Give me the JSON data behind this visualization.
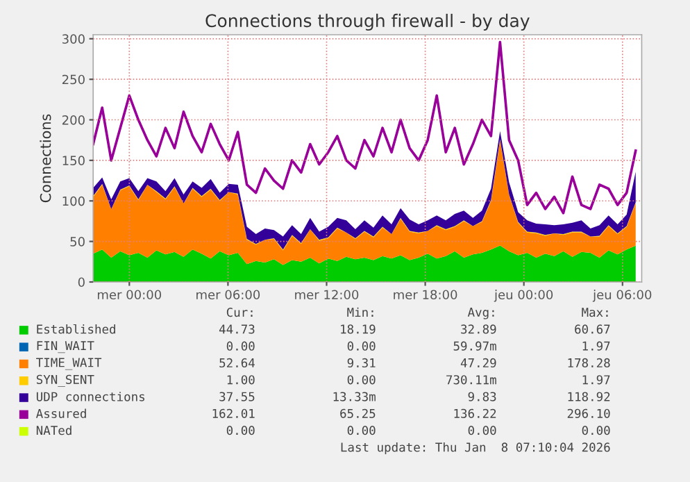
{
  "chart_data": {
    "type": "area",
    "title": "Connections through firewall - by day",
    "ylabel": "Connections",
    "stacked": true,
    "grid": true,
    "legend": "bottom",
    "x": [
      "2026-01-06T21:48",
      "2026-01-06T22:21",
      "2026-01-06T22:54",
      "2026-01-06T23:27",
      "2026-01-07T00:00",
      "2026-01-07T00:33",
      "2026-01-07T01:06",
      "2026-01-07T01:39",
      "2026-01-07T02:12",
      "2026-01-07T02:45",
      "2026-01-07T03:18",
      "2026-01-07T03:51",
      "2026-01-07T04:24",
      "2026-01-07T04:57",
      "2026-01-07T05:30",
      "2026-01-07T06:03",
      "2026-01-07T06:36",
      "2026-01-07T07:09",
      "2026-01-07T07:42",
      "2026-01-07T08:15",
      "2026-01-07T08:48",
      "2026-01-07T09:21",
      "2026-01-07T09:54",
      "2026-01-07T10:27",
      "2026-01-07T11:00",
      "2026-01-07T11:33",
      "2026-01-07T12:06",
      "2026-01-07T12:39",
      "2026-01-07T13:12",
      "2026-01-07T13:45",
      "2026-01-07T14:18",
      "2026-01-07T14:51",
      "2026-01-07T15:24",
      "2026-01-07T15:57",
      "2026-01-07T16:30",
      "2026-01-07T17:03",
      "2026-01-07T17:36",
      "2026-01-07T18:09",
      "2026-01-07T18:42",
      "2026-01-07T19:15",
      "2026-01-07T19:48",
      "2026-01-07T20:21",
      "2026-01-07T20:54",
      "2026-01-07T21:27",
      "2026-01-07T22:00",
      "2026-01-07T22:33",
      "2026-01-07T23:06",
      "2026-01-07T23:39",
      "2026-01-08T00:12",
      "2026-01-08T00:45",
      "2026-01-08T01:18",
      "2026-01-08T01:51",
      "2026-01-08T02:24",
      "2026-01-08T02:57",
      "2026-01-08T03:30",
      "2026-01-08T04:03",
      "2026-01-08T04:36",
      "2026-01-08T05:09",
      "2026-01-08T05:42",
      "2026-01-08T06:15",
      "2026-01-08T06:48"
    ],
    "xlim": [
      "2026-01-06T21:48",
      "2026-01-08T07:10"
    ],
    "xticks": [
      {
        "value": "2026-01-07T00:00",
        "label": "mer 00:00"
      },
      {
        "value": "2026-01-07T06:00",
        "label": "mer 06:00"
      },
      {
        "value": "2026-01-07T12:00",
        "label": "mer 12:00"
      },
      {
        "value": "2026-01-07T18:00",
        "label": "mer 18:00"
      },
      {
        "value": "2026-01-08T00:00",
        "label": "jeu 00:00"
      },
      {
        "value": "2026-01-08T06:00",
        "label": "jeu 06:00"
      }
    ],
    "ylim": [
      0,
      305
    ],
    "yticks": [
      0,
      50,
      100,
      150,
      200,
      250,
      300
    ],
    "series": [
      {
        "name": "Established",
        "color": "#00cc00",
        "values": [
          35,
          40,
          30,
          38,
          33,
          36,
          30,
          39,
          34,
          37,
          31,
          40,
          35,
          29,
          38,
          33,
          36,
          22,
          26,
          24,
          28,
          21,
          27,
          25,
          30,
          23,
          29,
          26,
          31,
          28,
          30,
          27,
          32,
          29,
          33,
          27,
          30,
          35,
          29,
          32,
          38,
          30,
          34,
          36,
          40,
          45,
          38,
          33,
          36,
          30,
          35,
          32,
          38,
          31,
          37,
          36,
          30,
          39,
          34,
          40,
          44.73
        ]
      },
      {
        "name": "FIN_WAIT",
        "color": "#0066b3",
        "values": [
          null,
          null,
          null,
          null,
          null,
          null,
          null,
          null,
          null,
          null,
          null,
          null,
          null,
          null,
          null,
          null,
          null,
          null,
          null,
          null,
          null,
          null,
          null,
          null,
          null,
          null,
          null,
          null,
          null,
          null,
          null,
          null,
          null,
          null,
          null,
          null,
          null,
          null,
          null,
          null,
          null,
          null,
          null,
          null,
          null,
          null,
          null,
          null,
          null,
          null,
          null,
          null,
          null,
          null,
          null,
          null,
          null,
          null,
          null,
          null,
          null
        ]
      },
      {
        "name": "TIME_WAIT",
        "color": "#ff8000",
        "values": [
          70,
          80,
          60,
          75,
          85,
          65,
          90,
          72,
          68,
          80,
          66,
          75,
          70,
          85,
          62,
          78,
          72,
          30,
          20,
          28,
          25,
          18,
          30,
          22,
          35,
          28,
          25,
          40,
          30,
          25,
          32,
          28,
          35,
          30,
          45,
          35,
          30,
          28,
          40,
          32,
          30,
          45,
          35,
          38,
          60,
          130,
          70,
          40,
          25,
          30,
          22,
          28,
          20,
          30,
          24,
          20,
          26,
          30,
          25,
          28,
          52.64
        ]
      },
      {
        "name": "SYN_SENT",
        "color": "#ffcc00",
        "values": [
          1,
          1,
          0,
          1,
          1,
          1,
          0,
          1,
          1,
          1,
          0,
          1,
          1,
          1,
          1,
          0,
          1,
          1,
          1,
          0,
          1,
          1,
          1,
          1,
          0,
          1,
          1,
          1,
          0,
          1,
          1,
          1,
          1,
          0,
          1,
          1,
          1,
          0,
          1,
          1,
          1,
          1,
          0,
          1,
          1,
          1,
          0,
          1,
          1,
          1,
          1,
          0,
          1,
          1,
          1,
          0,
          1,
          1,
          1,
          1,
          1
        ]
      },
      {
        "name": "UDP connections",
        "color": "#330099",
        "values": [
          10,
          8,
          12,
          10,
          9,
          10,
          8,
          12,
          9,
          10,
          11,
          8,
          10,
          12,
          9,
          10,
          11,
          15,
          12,
          14,
          10,
          16,
          12,
          11,
          14,
          10,
          13,
          12,
          15,
          11,
          13,
          11,
          14,
          12,
          12,
          14,
          10,
          13,
          12,
          11,
          15,
          12,
          10,
          13,
          14,
          10,
          15,
          12,
          14,
          11,
          13,
          10,
          12,
          11,
          14,
          10,
          13,
          12,
          11,
          14,
          37.55
        ]
      },
      {
        "name": "Assured",
        "color": "#990099",
        "type": "line",
        "values": [
          170,
          215,
          150,
          190,
          230,
          200,
          175,
          155,
          190,
          165,
          210,
          180,
          160,
          195,
          170,
          150,
          185,
          120,
          110,
          140,
          125,
          115,
          150,
          135,
          170,
          145,
          160,
          180,
          150,
          140,
          175,
          155,
          190,
          160,
          200,
          165,
          150,
          175,
          230,
          160,
          190,
          145,
          170,
          200,
          180,
          296,
          175,
          150,
          95,
          110,
          90,
          105,
          85,
          130,
          95,
          90,
          120,
          115,
          95,
          110,
          162.01
        ]
      },
      {
        "name": "NATed",
        "color": "#ccff00",
        "type": "line",
        "values": [
          null,
          null,
          null,
          null,
          null,
          null,
          null,
          null,
          null,
          null,
          null,
          null,
          null,
          null,
          null,
          null,
          null,
          null,
          null,
          null,
          null,
          null,
          null,
          null,
          null,
          null,
          null,
          null,
          null,
          null,
          null,
          null,
          null,
          null,
          null,
          null,
          null,
          null,
          null,
          null,
          null,
          null,
          null,
          null,
          null,
          null,
          null,
          null,
          null,
          null,
          null,
          null,
          null,
          null,
          null,
          null,
          null,
          null,
          null,
          null,
          null
        ]
      }
    ],
    "annotations": [
      "Cur:",
      "Min:",
      "Avg:",
      "Max:",
      "44.73",
      "18.19",
      "32.89",
      "60.67",
      "0.00",
      "0.00",
      "59.97m",
      "1.97",
      "52.64",
      "9.31",
      "47.29",
      "178.28",
      "1.00",
      "0.00",
      "730.11m",
      "1.97",
      "37.55",
      "13.33m",
      "9.83",
      "118.92",
      "162.01",
      "65.25",
      "136.22",
      "296.10",
      "0.00",
      "0.00",
      "0.00",
      "0.00",
      "Last update: Thu Jan  8 07:10:04 2026"
    ]
  }
}
